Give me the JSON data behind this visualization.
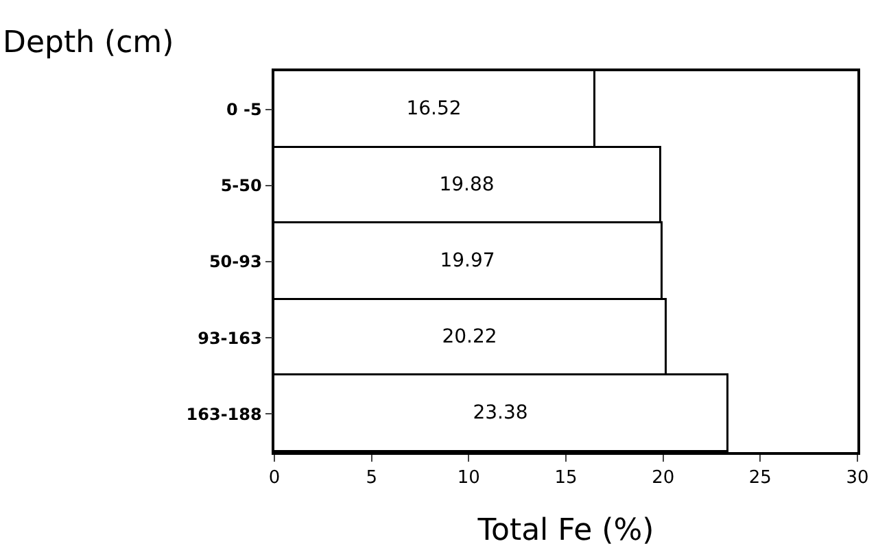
{
  "chart_data": {
    "type": "bar",
    "orientation": "horizontal",
    "ylabel": "Depth (cm)",
    "xlabel": "Total Fe (%)",
    "categories": [
      "0 -5",
      "5-50",
      "50-93",
      "93-163",
      "163-188"
    ],
    "values": [
      16.52,
      19.88,
      19.97,
      20.22,
      23.38
    ],
    "color": "#ffffff",
    "data_labels": true,
    "xlim": [
      0,
      30
    ],
    "xticks": [
      0,
      5,
      10,
      15,
      20,
      25,
      30
    ],
    "grid": false,
    "legend": false
  }
}
